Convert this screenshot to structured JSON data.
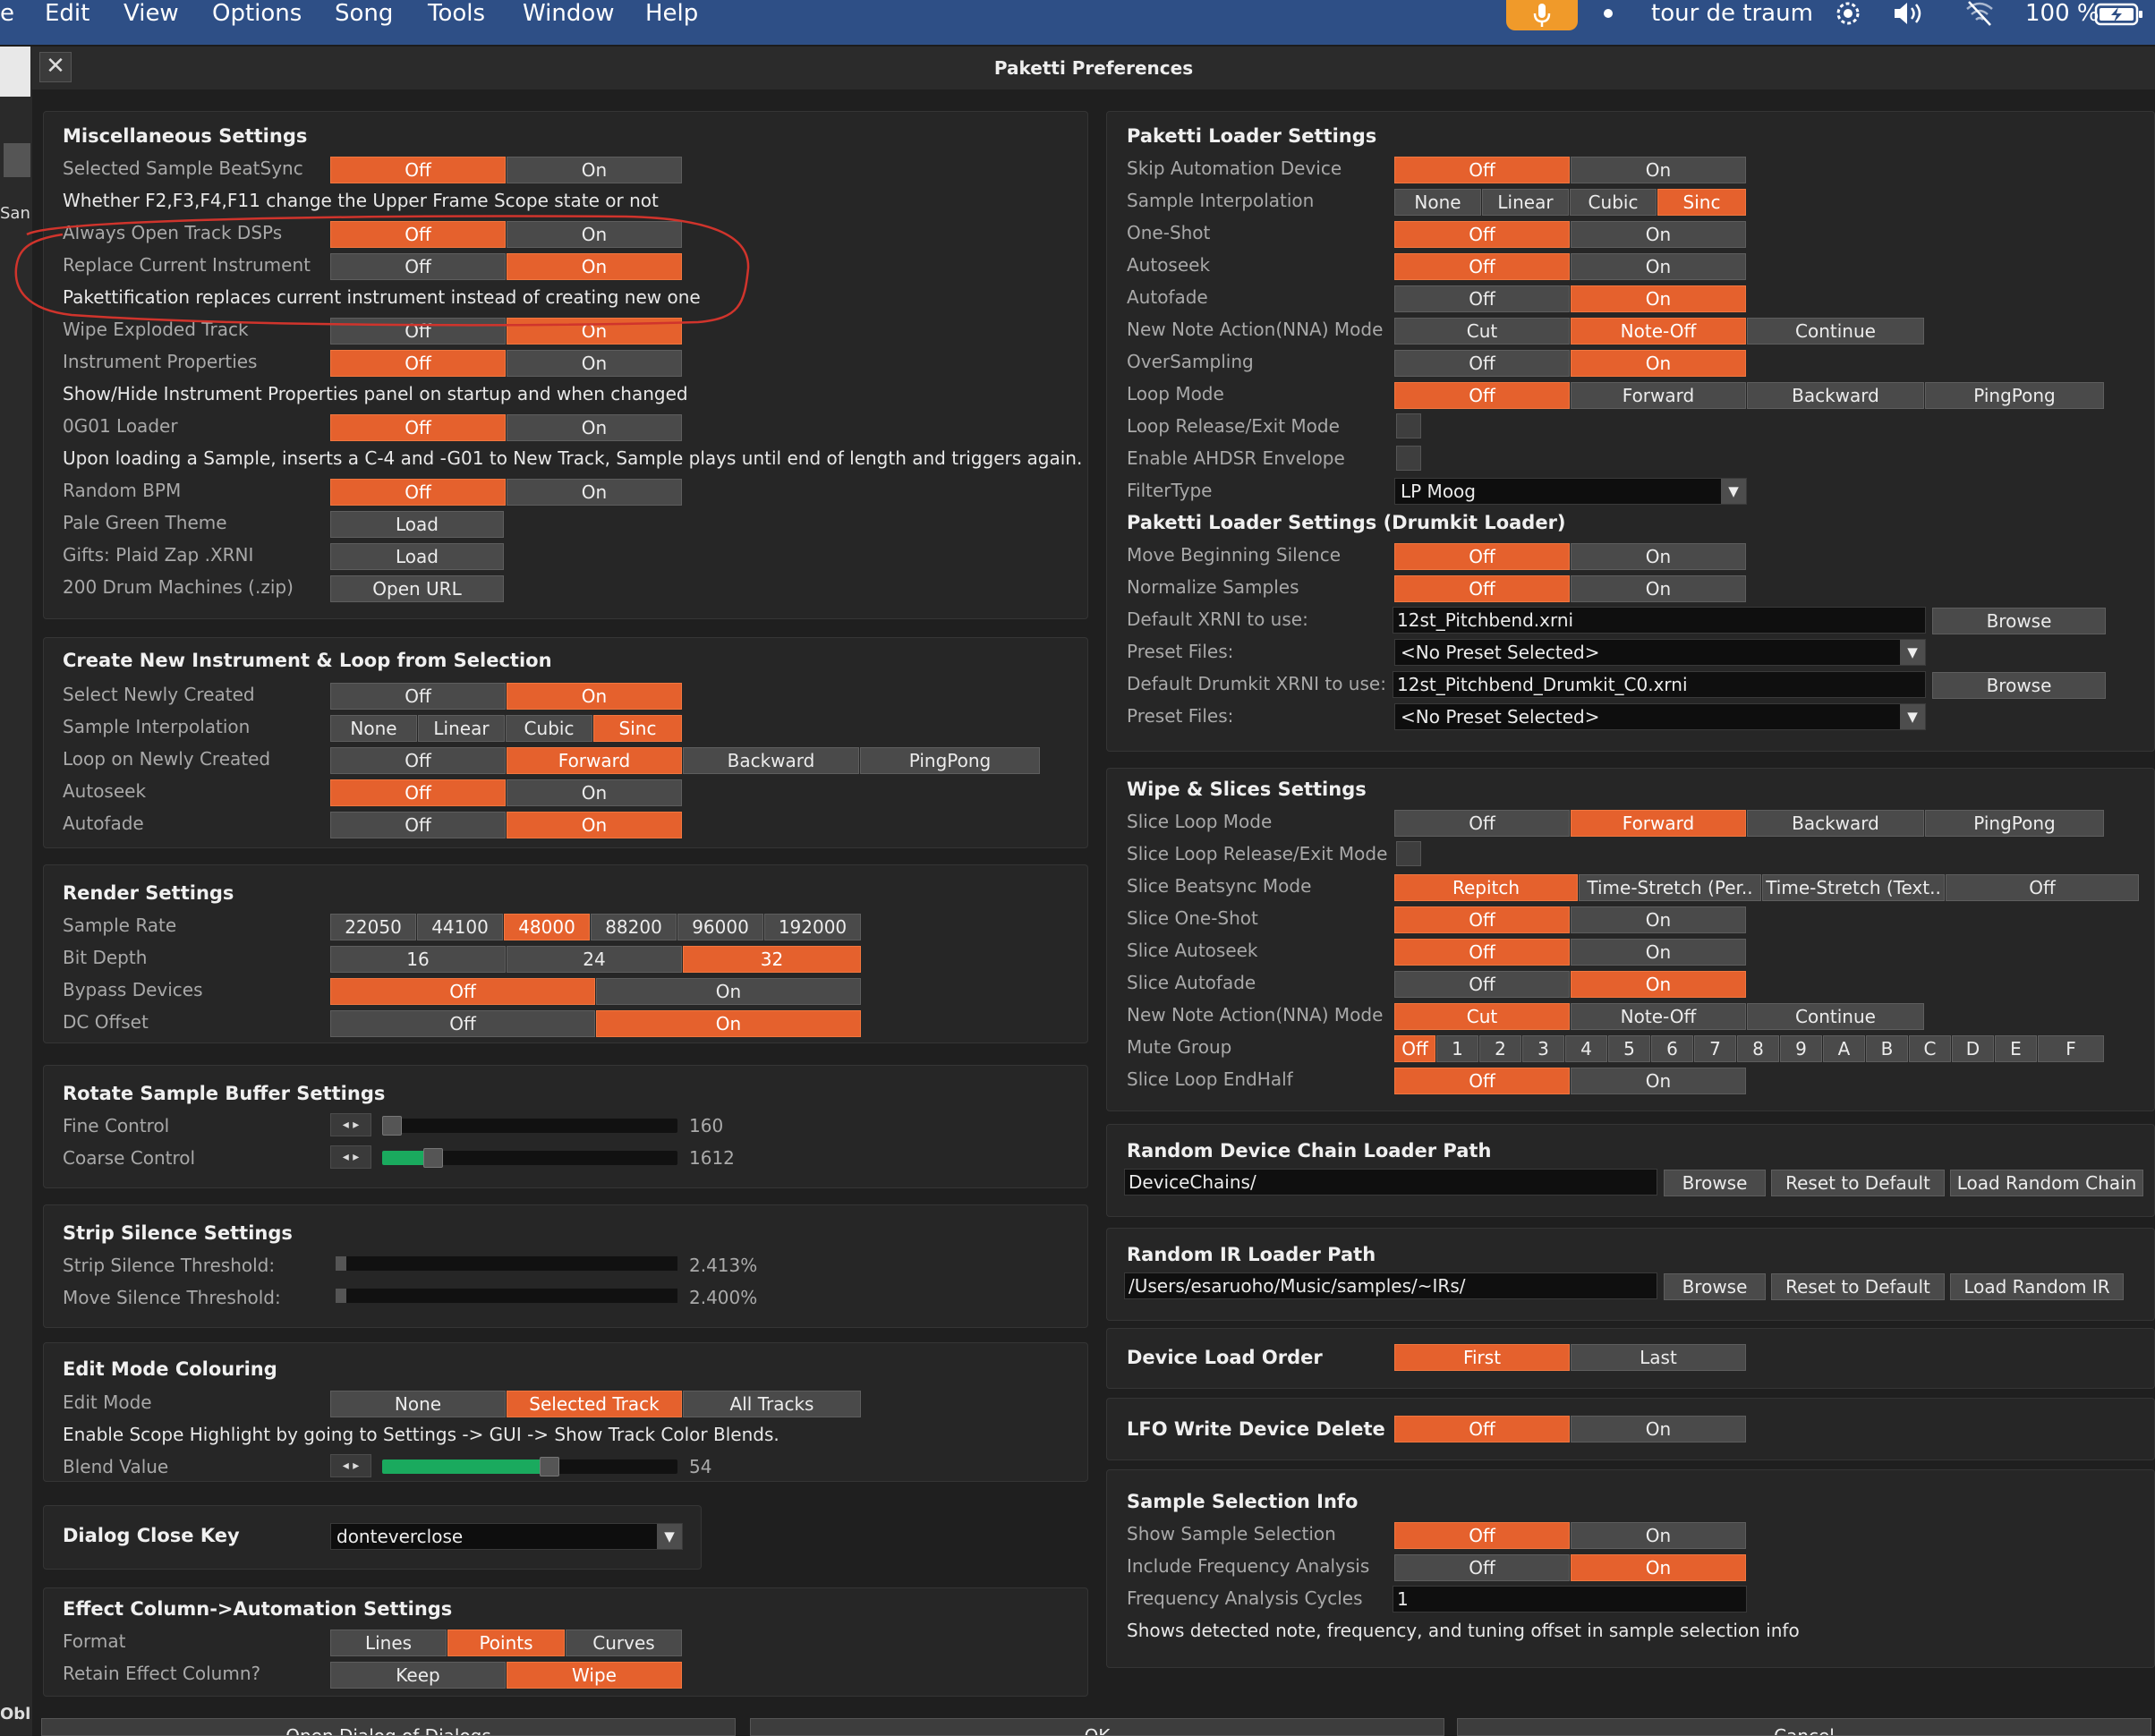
{
  "menubar": {
    "items": [
      "e",
      "Edit",
      "View",
      "Options",
      "Song",
      "Tools",
      "Window",
      "Help"
    ],
    "status_title": "tour de traum",
    "battery": "100 %"
  },
  "leftstrip": {
    "sa": "San",
    "obl": "Obl"
  },
  "dialog": {
    "title": "Paketti Preferences",
    "close": "✕"
  },
  "misc": {
    "title": "Miscellaneous Settings",
    "beatsync": "Selected Sample BeatSync",
    "beatsync_note": "Whether F2,F3,F4,F11 change the Upper Frame Scope state or not",
    "always_open": "Always Open Track DSPs",
    "replace": "Replace Current Instrument",
    "replace_note": "Pakettification replaces current instrument instead of creating new one",
    "wipe": "Wipe Exploded Track",
    "instr_props": "Instrument Properties",
    "instr_note": "Show/Hide Instrument Properties panel on startup and when changed",
    "og01": "0G01 Loader",
    "og01_note": "Upon loading a Sample, inserts a C-4 and -G01 to New Track, Sample plays until end of length and triggers again.",
    "random_bpm": "Random BPM",
    "pale": "Pale Green Theme",
    "gifts": "Gifts: Plaid Zap .XRNI",
    "drum200": "200 Drum Machines (.zip)",
    "load": "Load",
    "open_url": "Open URL"
  },
  "common": {
    "off": "Off",
    "on": "On",
    "none": "None",
    "linear": "Linear",
    "cubic": "Cubic",
    "sinc": "Sinc",
    "forward": "Forward",
    "backward": "Backward",
    "pingpong": "PingPong",
    "browse": "Browse",
    "cut": "Cut",
    "noteoff": "Note-Off",
    "continue": "Continue",
    "reset": "Reset to Default"
  },
  "create": {
    "title": "Create New Instrument & Loop from Selection",
    "select_new": "Select Newly Created",
    "interp": "Sample Interpolation",
    "loop": "Loop on Newly Created",
    "autoseek": "Autoseek",
    "autofade": "Autofade"
  },
  "render": {
    "title": "Render Settings",
    "rate": "Sample Rate",
    "rates": [
      "22050",
      "44100",
      "48000",
      "88200",
      "96000",
      "192000"
    ],
    "selected_rate": "48000",
    "depth": "Bit Depth",
    "depths": [
      "16",
      "24",
      "32"
    ],
    "selected_depth": "32",
    "bypass": "Bypass Devices",
    "dc": "DC Offset"
  },
  "rotate": {
    "title": "Rotate Sample Buffer Settings",
    "fine": "Fine Control",
    "fine_val": "160",
    "coarse": "Coarse Control",
    "coarse_val": "1612"
  },
  "strip": {
    "title": "Strip Silence Settings",
    "thresh": "Strip Silence Threshold:",
    "thresh_val": "2.413%",
    "move": "Move Silence Threshold:",
    "move_val": "2.400%"
  },
  "edit": {
    "title": "Edit Mode Colouring",
    "mode": "Edit Mode",
    "options": [
      "None",
      "Selected Track",
      "All Tracks"
    ],
    "selected": "Selected Track",
    "note": "Enable Scope Highlight by going to Settings -> GUI -> Show Track Color Blends.",
    "blend": "Blend Value",
    "blend_val": "54"
  },
  "close_key": {
    "title": "Dialog Close Key",
    "value": "donteverclose"
  },
  "effect": {
    "title": "Effect Column->Automation Settings",
    "format": "Format",
    "formats": [
      "Lines",
      "Points",
      "Curves"
    ],
    "selected_format": "Points",
    "retain": "Retain Effect Column?",
    "keep": "Keep",
    "wipe": "Wipe"
  },
  "loader": {
    "title": "Paketti Loader Settings",
    "skip": "Skip Automation Device",
    "interp": "Sample Interpolation",
    "oneshot": "One-Shot",
    "autoseek": "Autoseek",
    "autofade": "Autofade",
    "nna": "New Note Action(NNA) Mode",
    "oversampling": "OverSampling",
    "loop_mode": "Loop Mode",
    "loop_release": "Loop Release/Exit Mode",
    "ahdsr": "Enable AHDSR Envelope",
    "filter": "FilterType",
    "filter_val": "LP Moog"
  },
  "drumkit": {
    "title": "Paketti Loader Settings (Drumkit Loader)",
    "move_begin": "Move Beginning Silence",
    "normalize": "Normalize Samples",
    "default_xrni": "Default XRNI to use:",
    "default_xrni_val": "12st_Pitchbend.xrni",
    "preset": "Preset Files:",
    "preset_val": "<No Preset Selected>",
    "default_drumkit": "Default Drumkit XRNI to use:",
    "default_drumkit_val": "12st_Pitchbend_Drumkit_C0.xrni"
  },
  "wipe_slices": {
    "title": "Wipe & Slices Settings",
    "loop_mode": "Slice Loop Mode",
    "loop_release": "Slice Loop Release/Exit Mode",
    "beatsync": "Slice Beatsync Mode",
    "beatsync_opts": [
      "Repitch",
      "Time-Stretch (Per..",
      "Time-Stretch (Text..",
      "Off"
    ],
    "oneshot": "Slice One-Shot",
    "autoseek": "Slice Autoseek",
    "autofade": "Slice Autofade",
    "nna": "New Note Action(NNA) Mode",
    "mute": "Mute Group",
    "mute_opts": [
      "Off",
      "1",
      "2",
      "3",
      "4",
      "5",
      "6",
      "7",
      "8",
      "9",
      "A",
      "B",
      "C",
      "D",
      "E",
      "F"
    ],
    "endhalf": "Slice Loop EndHalf"
  },
  "device_chain": {
    "title": "Random Device Chain Loader Path",
    "path": "DeviceChains/",
    "load_random": "Load Random Chain"
  },
  "ir": {
    "title": "Random IR Loader Path",
    "path": "/Users/esaruoho/Music/samples/~IRs/",
    "load_random": "Load Random IR"
  },
  "load_order": {
    "title": "Device Load Order",
    "first": "First",
    "last": "Last"
  },
  "lfo": {
    "title": "LFO Write Device Delete"
  },
  "selection_info": {
    "title": "Sample Selection Info",
    "show": "Show Sample Selection",
    "freq": "Include Frequency Analysis",
    "cycles": "Frequency Analysis Cycles",
    "cycles_val": "1",
    "note": "Shows detected note, frequency, and tuning offset in sample selection info"
  },
  "footer": {
    "open": "Open Dialog of Dialogs",
    "ok": "OK",
    "cancel": "Cancel"
  },
  "colors": {
    "accent": "#e5612d",
    "menubar": "#2e4f86",
    "annotation": "#d0342c"
  }
}
